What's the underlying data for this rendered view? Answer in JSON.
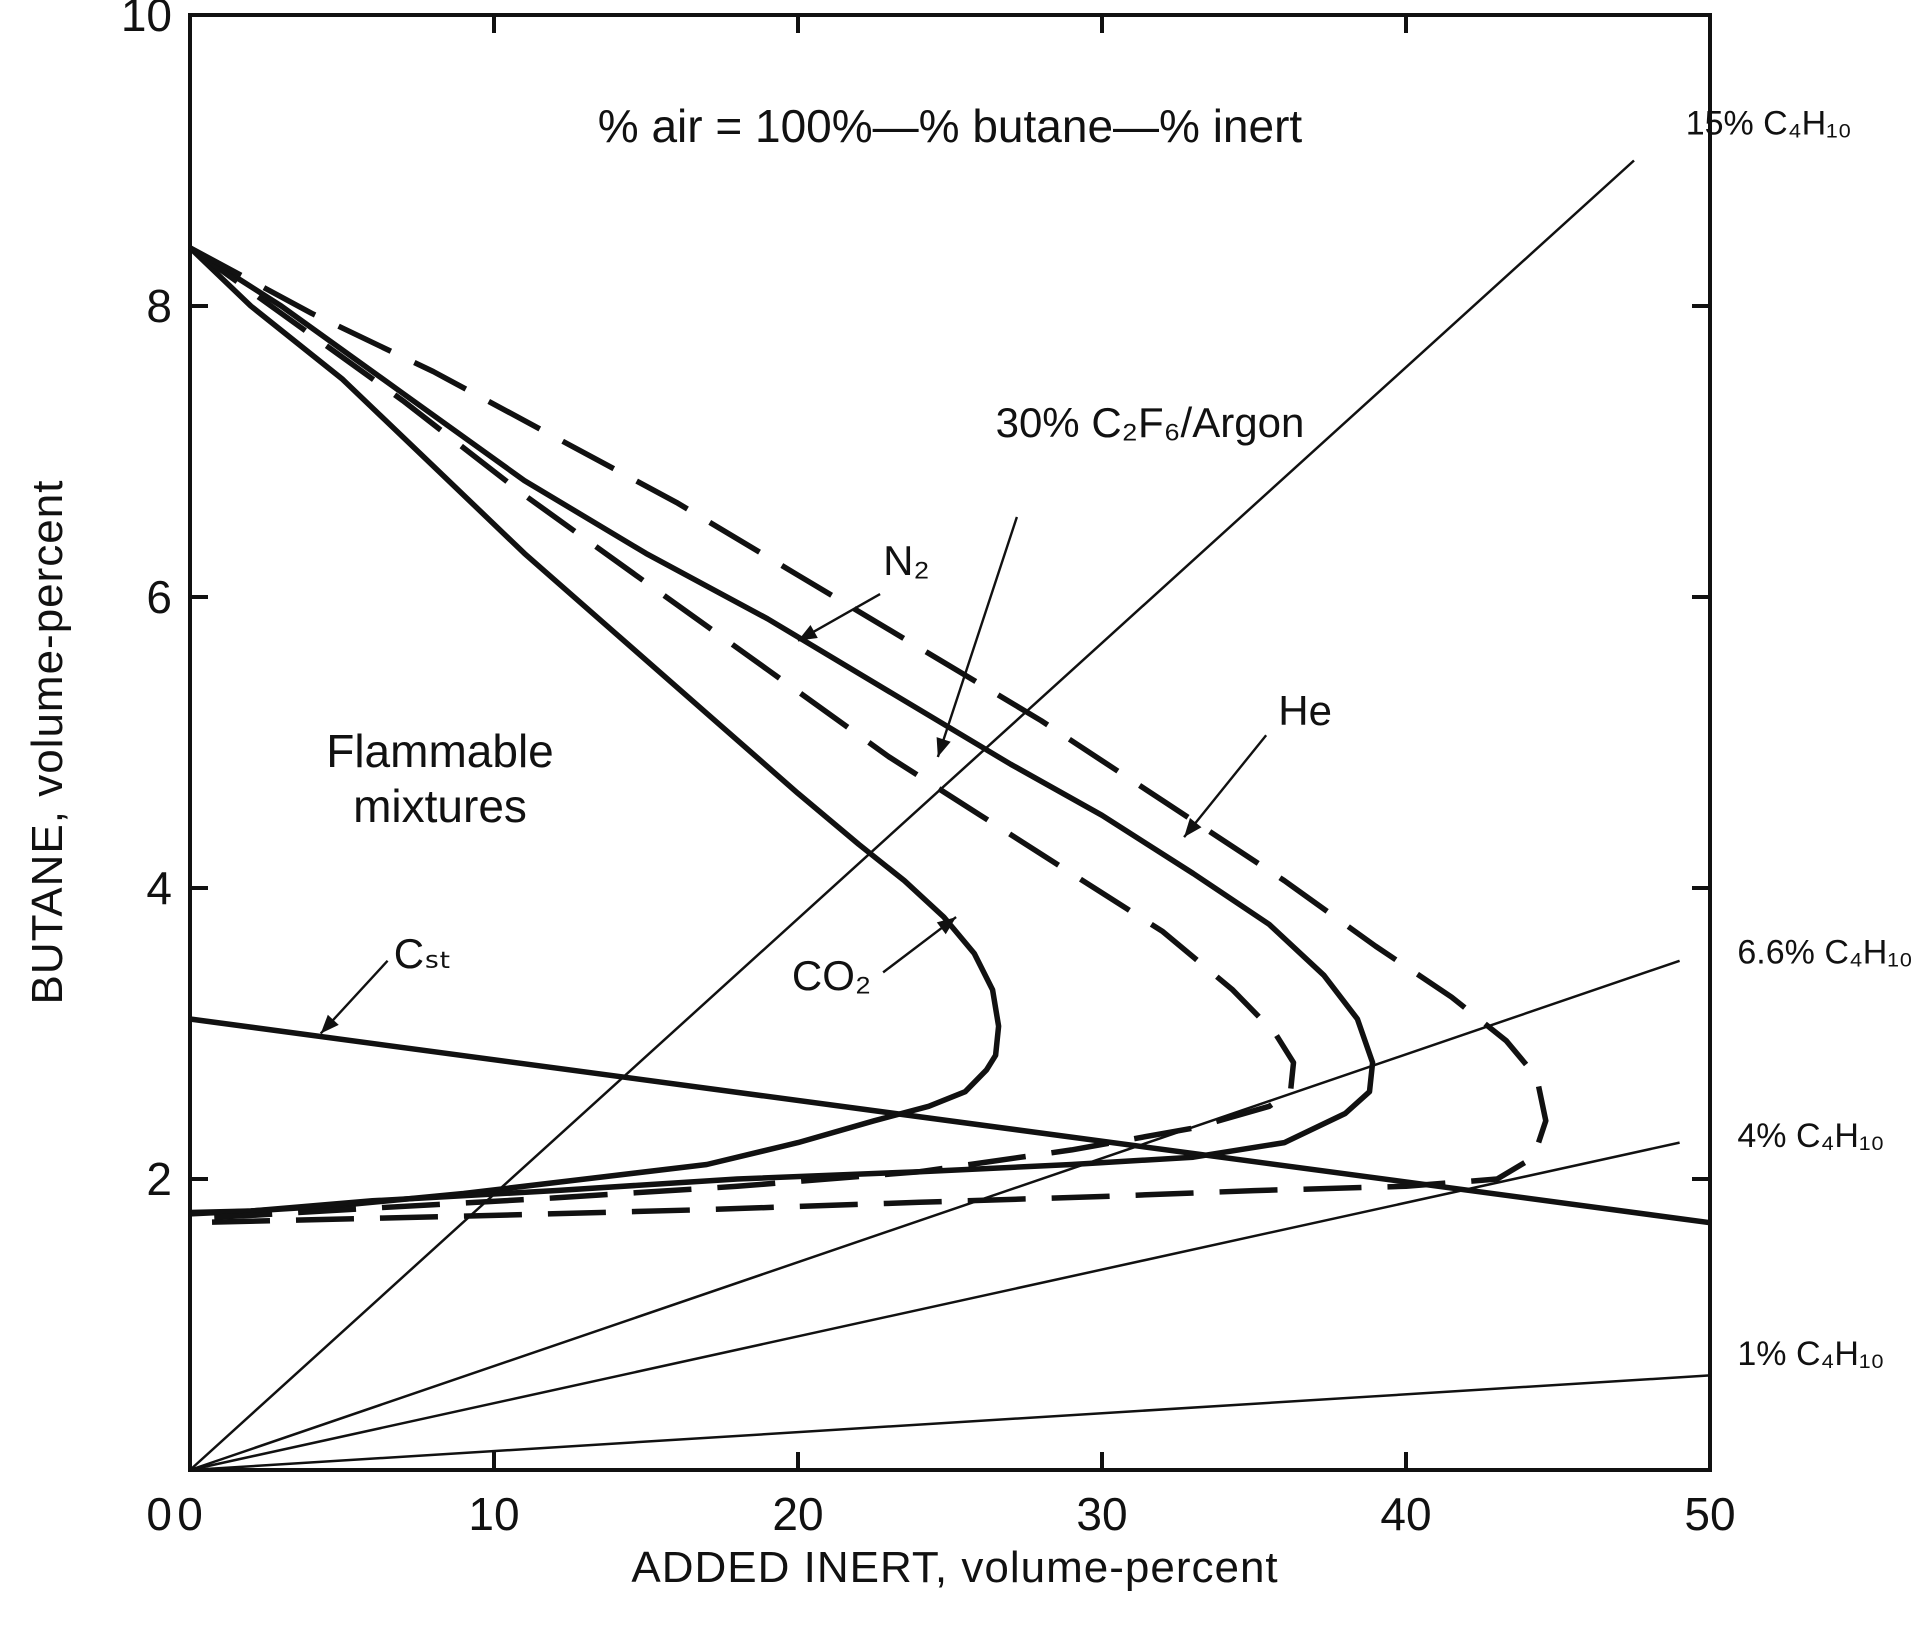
{
  "chart_data": {
    "type": "line",
    "title": "",
    "xlabel": "ADDED INERT, volume-percent",
    "ylabel": "BUTANE, volume-percent",
    "xlim": [
      0,
      50
    ],
    "ylim": [
      0,
      10
    ],
    "x_ticks": [
      "0",
      "10",
      "20",
      "30",
      "40",
      "50"
    ],
    "y_ticks": [
      "2",
      "4",
      "6",
      "8",
      "10"
    ],
    "grid": false,
    "legend": "none",
    "annotations": {
      "air_formula": "% air = 100%—% butane—% inert",
      "flammable_1": "Flammable",
      "flammable_2": "mixtures"
    },
    "series": [
      {
        "name": "CO₂",
        "style": "solid-thick",
        "x": [
          0,
          2,
          5,
          8,
          11,
          14,
          17,
          20,
          22,
          23.5,
          24.8,
          25.8,
          26.4,
          26.6,
          26.5,
          26.2,
          25.5,
          24.3,
          22.5,
          20,
          17,
          13,
          9,
          5,
          2,
          0
        ],
        "y": [
          8.4,
          8.0,
          7.5,
          6.9,
          6.3,
          5.75,
          5.2,
          4.65,
          4.3,
          4.05,
          3.8,
          3.55,
          3.3,
          3.05,
          2.85,
          2.75,
          2.6,
          2.5,
          2.4,
          2.25,
          2.1,
          2.0,
          1.9,
          1.82,
          1.78,
          1.77
        ]
      },
      {
        "name": "N₂",
        "style": "solid-thick",
        "x": [
          0,
          3,
          7,
          11,
          15,
          19,
          23,
          27,
          30,
          33,
          35.5,
          37.3,
          38.4,
          38.9,
          38.8,
          38,
          36,
          33,
          29,
          24,
          18,
          12,
          6,
          2,
          0
        ],
        "y": [
          8.4,
          8.0,
          7.4,
          6.8,
          6.3,
          5.85,
          5.35,
          4.85,
          4.5,
          4.1,
          3.75,
          3.4,
          3.1,
          2.8,
          2.6,
          2.45,
          2.25,
          2.15,
          2.1,
          2.05,
          2.0,
          1.92,
          1.85,
          1.78,
          1.76
        ]
      },
      {
        "name": "30% C₂F₆/Argon",
        "style": "dashed-thick",
        "x": [
          0,
          3,
          7,
          11,
          15,
          19,
          23,
          26,
          29,
          32,
          34.3,
          35.7,
          36.3,
          36.2,
          35.5,
          33,
          29,
          24,
          18,
          12,
          6,
          2,
          0
        ],
        "y": [
          8.4,
          7.95,
          7.35,
          6.7,
          6.1,
          5.5,
          4.9,
          4.5,
          4.1,
          3.7,
          3.3,
          3.0,
          2.8,
          2.6,
          2.5,
          2.35,
          2.2,
          2.05,
          1.95,
          1.87,
          1.8,
          1.75,
          1.73
        ]
      },
      {
        "name": "He",
        "style": "dashed-thick",
        "x": [
          0,
          4,
          8,
          12,
          16,
          20,
          24,
          28,
          32,
          36,
          39,
          41.5,
          43.3,
          44.3,
          44.6,
          44.2,
          43,
          40,
          35,
          30,
          24,
          17,
          10,
          4,
          0
        ],
        "y": [
          8.4,
          7.95,
          7.55,
          7.1,
          6.65,
          6.15,
          5.65,
          5.15,
          4.6,
          4.05,
          3.6,
          3.25,
          2.95,
          2.7,
          2.4,
          2.15,
          2.0,
          1.95,
          1.92,
          1.88,
          1.84,
          1.79,
          1.75,
          1.72,
          1.7
        ]
      },
      {
        "name": "C_st",
        "style": "solid-thick",
        "x": [
          0,
          50
        ],
        "y": [
          3.1,
          1.7
        ]
      },
      {
        "name": "15% C₄H₁₀",
        "style": "solid-thin",
        "x": [
          0,
          47.5
        ],
        "y": [
          0,
          9.0
        ]
      },
      {
        "name": "6.6% C₄H₁₀",
        "style": "solid-thin",
        "x": [
          0,
          49
        ],
        "y": [
          0,
          3.5
        ]
      },
      {
        "name": "4% C₄H₁₀",
        "style": "solid-thin",
        "x": [
          0,
          49
        ],
        "y": [
          0,
          2.25
        ]
      },
      {
        "name": "1% C₄H₁₀",
        "style": "solid-thin",
        "x": [
          0,
          50
        ],
        "y": [
          0,
          0.65
        ]
      }
    ],
    "labels": {
      "co2": "CO₂",
      "n2": "N₂",
      "argon": "30% C₂F₆/Argon",
      "he": "He",
      "cst": "Cₛₜ",
      "r15": "15% C₄H₁₀",
      "r66": "6.6% C₄H₁₀",
      "r4": "4% C₄H₁₀",
      "r1": "1% C₄H₁₀"
    }
  }
}
